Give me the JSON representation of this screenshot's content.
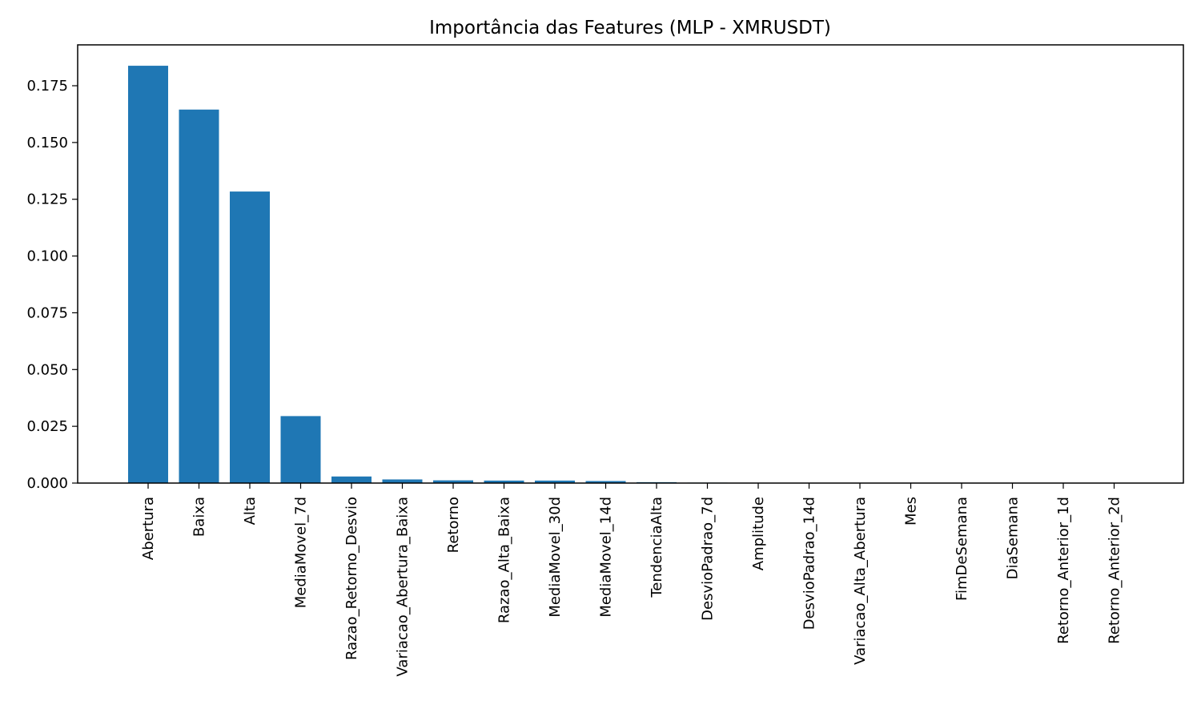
{
  "chart_data": {
    "type": "bar",
    "title": "Importância das Features (MLP - XMRUSDT)",
    "xlabel": "",
    "ylabel": "",
    "categories": [
      "Abertura",
      "Baixa",
      "Alta",
      "MediaMovel_7d",
      "Razao_Retorno_Desvio",
      "Variacao_Abertura_Baixa",
      "Retorno",
      "Razao_Alta_Baixa",
      "MediaMovel_30d",
      "MediaMovel_14d",
      "TendenciaAlta",
      "DesvioPadrao_7d",
      "Amplitude",
      "DesvioPadrao_14d",
      "Variacao_Alta_Abertura",
      "Mes",
      "FimDeSemana",
      "DiaSemana",
      "Retorno_Anterior_1d",
      "Retorno_Anterior_2d"
    ],
    "values": [
      0.1838,
      0.1645,
      0.1284,
      0.0295,
      0.0029,
      0.0016,
      0.0012,
      0.0011,
      0.0011,
      0.0009,
      0.0004,
      0.0002,
      0.0001,
      0.0001,
      0.0001,
      0.0,
      0.0,
      0.0,
      0.0,
      0.0
    ],
    "ylim": [
      0,
      0.193
    ],
    "yticks": [
      "0.000",
      "0.025",
      "0.050",
      "0.075",
      "0.100",
      "0.125",
      "0.150",
      "0.175"
    ],
    "grid": false,
    "bar_color": "#1f77b4"
  }
}
